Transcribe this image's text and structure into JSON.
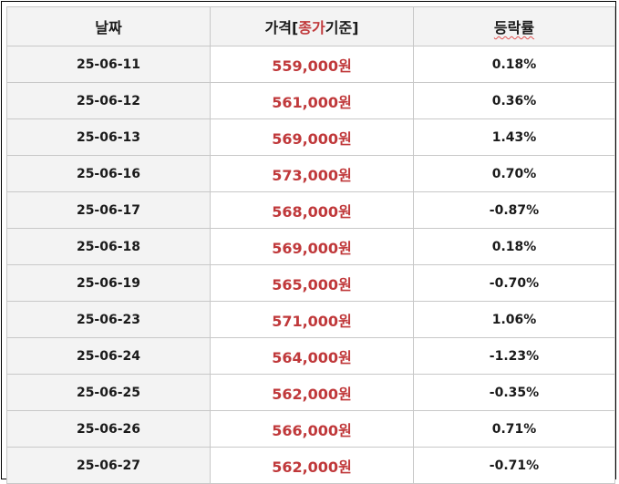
{
  "colors": {
    "accent": "#c0393b",
    "header_bg": "#f3f3f3",
    "date_bg": "#f3f3f3",
    "border": "#c8c8c8",
    "text": "#1a1a1a"
  },
  "table": {
    "headers": {
      "date": "날짜",
      "price_prefix": "가격[",
      "price_accent": "종가",
      "price_suffix": "기준]",
      "rate": "등락률"
    },
    "rows": [
      {
        "date": "25-06-11",
        "price": "559,000원",
        "rate": "0.18%"
      },
      {
        "date": "25-06-12",
        "price": "561,000원",
        "rate": "0.36%"
      },
      {
        "date": "25-06-13",
        "price": "569,000원",
        "rate": "1.43%"
      },
      {
        "date": "25-06-16",
        "price": "573,000원",
        "rate": "0.70%"
      },
      {
        "date": "25-06-17",
        "price": "568,000원",
        "rate": "-0.87%"
      },
      {
        "date": "25-06-18",
        "price": "569,000원",
        "rate": "0.18%"
      },
      {
        "date": "25-06-19",
        "price": "565,000원",
        "rate": "-0.70%"
      },
      {
        "date": "25-06-23",
        "price": "571,000원",
        "rate": "1.06%"
      },
      {
        "date": "25-06-24",
        "price": "564,000원",
        "rate": "-1.23%"
      },
      {
        "date": "25-06-25",
        "price": "562,000원",
        "rate": "-0.35%"
      },
      {
        "date": "25-06-26",
        "price": "566,000원",
        "rate": "0.71%"
      },
      {
        "date": "25-06-27",
        "price": "562,000원",
        "rate": "-0.71%"
      }
    ]
  }
}
